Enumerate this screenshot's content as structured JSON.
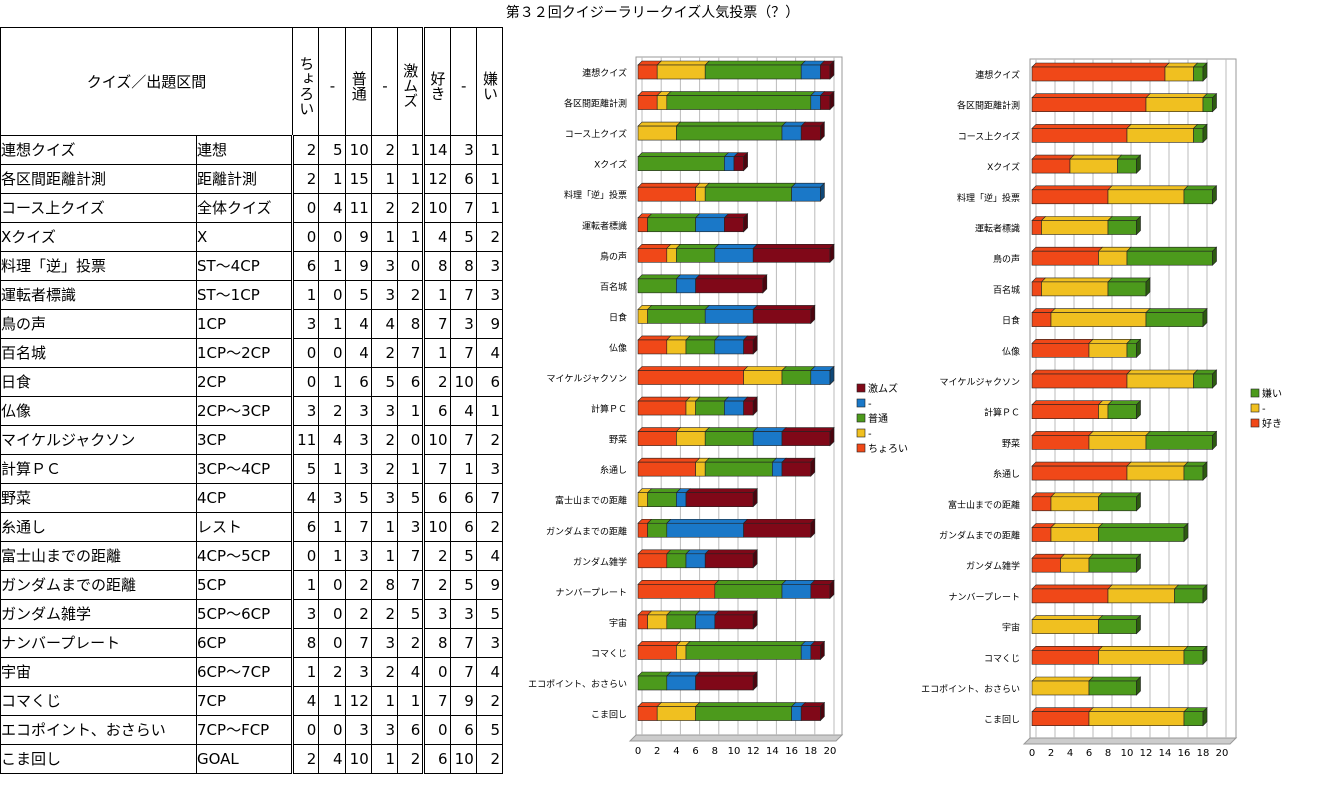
{
  "title": "第３２回クイジーラリークイズ人気投票（？）",
  "table": {
    "header": "クイズ／出題区間",
    "columns": [
      "ちょろい",
      "-",
      "普通",
      "-",
      "激ムズ",
      "好き",
      "-",
      "嫌い"
    ],
    "rows": [
      {
        "name": "連想クイズ",
        "section": "連想",
        "v": [
          2,
          5,
          10,
          2,
          1,
          14,
          3,
          1
        ]
      },
      {
        "name": "各区間距離計測",
        "section": "距離計測",
        "v": [
          2,
          1,
          15,
          1,
          1,
          12,
          6,
          1
        ]
      },
      {
        "name": "コース上クイズ",
        "section": "全体クイズ",
        "v": [
          0,
          4,
          11,
          2,
          2,
          10,
          7,
          1
        ]
      },
      {
        "name": "Xクイズ",
        "section": "X",
        "v": [
          0,
          0,
          9,
          1,
          1,
          4,
          5,
          2
        ]
      },
      {
        "name": "料理「逆」投票",
        "section": "ST～4CP",
        "v": [
          6,
          1,
          9,
          3,
          0,
          8,
          8,
          3
        ]
      },
      {
        "name": "運転者標識",
        "section": "ST～1CP",
        "v": [
          1,
          0,
          5,
          3,
          2,
          1,
          7,
          3
        ]
      },
      {
        "name": "鳥の声",
        "section": "1CP",
        "v": [
          3,
          1,
          4,
          4,
          8,
          7,
          3,
          9
        ]
      },
      {
        "name": "百名城",
        "section": "1CP～2CP",
        "v": [
          0,
          0,
          4,
          2,
          7,
          1,
          7,
          4
        ]
      },
      {
        "name": "日食",
        "section": "2CP",
        "v": [
          0,
          1,
          6,
          5,
          6,
          2,
          10,
          6
        ]
      },
      {
        "name": "仏像",
        "section": "2CP～3CP",
        "v": [
          3,
          2,
          3,
          3,
          1,
          6,
          4,
          1
        ]
      },
      {
        "name": "マイケルジャクソン",
        "section": "3CP",
        "v": [
          11,
          4,
          3,
          2,
          0,
          10,
          7,
          2
        ]
      },
      {
        "name": "計算ＰＣ",
        "section": "3CP～4CP",
        "v": [
          5,
          1,
          3,
          2,
          1,
          7,
          1,
          3
        ]
      },
      {
        "name": "野菜",
        "section": "4CP",
        "v": [
          4,
          3,
          5,
          3,
          5,
          6,
          6,
          7
        ]
      },
      {
        "name": "糸通し",
        "section": "レスト",
        "v": [
          6,
          1,
          7,
          1,
          3,
          10,
          6,
          2
        ]
      },
      {
        "name": "富士山までの距離",
        "section": "4CP～5CP",
        "v": [
          0,
          1,
          3,
          1,
          7,
          2,
          5,
          4
        ]
      },
      {
        "name": "ガンダムまでの距離",
        "section": "5CP",
        "v": [
          1,
          0,
          2,
          8,
          7,
          2,
          5,
          9
        ]
      },
      {
        "name": "ガンダム雑学",
        "section": "5CP～6CP",
        "v": [
          3,
          0,
          2,
          2,
          5,
          3,
          3,
          5
        ]
      },
      {
        "name": "ナンバープレート",
        "section": "6CP",
        "v": [
          8,
          0,
          7,
          3,
          2,
          8,
          7,
          3
        ]
      },
      {
        "name": "宇宙",
        "section": "6CP～7CP",
        "v": [
          1,
          2,
          3,
          2,
          4,
          0,
          7,
          4
        ]
      },
      {
        "name": "コマくじ",
        "section": "7CP",
        "v": [
          4,
          1,
          12,
          1,
          1,
          7,
          9,
          2
        ]
      },
      {
        "name": "エコポイント、おさらい",
        "section": "7CP～FCP",
        "v": [
          0,
          0,
          3,
          3,
          6,
          0,
          6,
          5
        ]
      },
      {
        "name": "こま回し",
        "section": "GOAL",
        "v": [
          2,
          4,
          10,
          1,
          2,
          6,
          10,
          2
        ]
      }
    ]
  },
  "chart_data": [
    {
      "type": "bar",
      "stacked": true,
      "orientation": "horizontal",
      "title": "",
      "xlim": [
        0,
        20
      ],
      "ticks": [
        0,
        2,
        4,
        6,
        8,
        10,
        12,
        14,
        16,
        18,
        20
      ],
      "legend": "right",
      "series": [
        {
          "name": "ちょろい",
          "col": 0,
          "color": "#f04818"
        },
        {
          "name": "-",
          "col": 1,
          "color": "#f0c020"
        },
        {
          "name": "普通",
          "col": 2,
          "color": "#4c9a1c"
        },
        {
          "name": "-",
          "col": 3,
          "color": "#1a78c8"
        },
        {
          "name": "激ムズ",
          "col": 4,
          "color": "#800818"
        }
      ]
    },
    {
      "type": "bar",
      "stacked": true,
      "orientation": "horizontal",
      "title": "",
      "xlim": [
        0,
        20
      ],
      "ticks": [
        0,
        2,
        4,
        6,
        8,
        10,
        12,
        14,
        16,
        18,
        20
      ],
      "legend": "right",
      "series": [
        {
          "name": "好き",
          "col": 5,
          "color": "#f04818"
        },
        {
          "name": "-",
          "col": 6,
          "color": "#f0c020"
        },
        {
          "name": "嫌い",
          "col": 7,
          "color": "#4c9a1c"
        }
      ]
    }
  ]
}
